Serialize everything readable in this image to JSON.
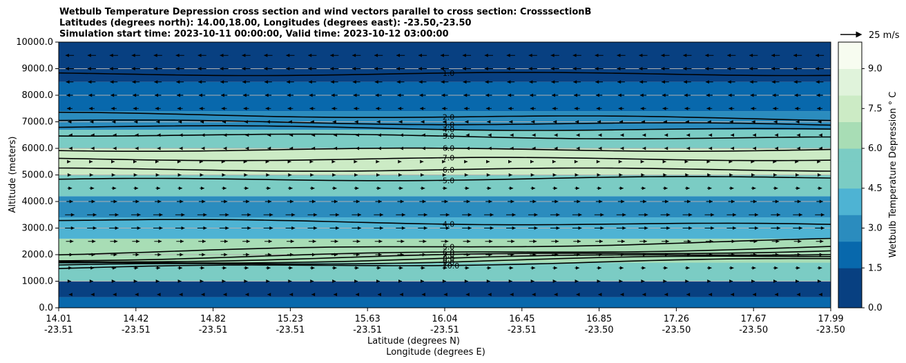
{
  "chart_data": {
    "type": "contour",
    "title_lines": [
      "Wetbulb Temperature Depression cross section and wind vectors parallel to cross section: CrosssectionB",
      "Latitudes (degrees north): 14.00,18.00, Longitudes (degrees east): -23.50,-23.50",
      "Simulation start time: 2023-10-11 00:00:00, Valid time: 2023-10-12 03:00:00"
    ],
    "ylabel": "Altitude (meters)",
    "xlabel_lat": "Latitude (degrees N)",
    "xlabel_lon": "Longitude (degrees E)",
    "ylim": [
      0,
      10000
    ],
    "yticks": [
      "0.0",
      "1000.0",
      "2000.0",
      "3000.0",
      "4000.0",
      "5000.0",
      "6000.0",
      "7000.0",
      "8000.0",
      "9000.0",
      "10000.0"
    ],
    "xticks": [
      {
        "lat": "14.01",
        "lon": "-23.51"
      },
      {
        "lat": "14.42",
        "lon": "-23.51"
      },
      {
        "lat": "14.82",
        "lon": "-23.51"
      },
      {
        "lat": "15.23",
        "lon": "-23.51"
      },
      {
        "lat": "15.63",
        "lon": "-23.51"
      },
      {
        "lat": "16.04",
        "lon": "-23.51"
      },
      {
        "lat": "16.45",
        "lon": "-23.51"
      },
      {
        "lat": "16.85",
        "lon": "-23.50"
      },
      {
        "lat": "17.26",
        "lon": "-23.50"
      },
      {
        "lat": "17.67",
        "lon": "-23.50"
      },
      {
        "lat": "17.99",
        "lon": "-23.50"
      }
    ],
    "colorbar": {
      "label": "Wetbulb Temperature Depression $^\\circ$C",
      "label_display": "Wetbulb Temperature Depression ° C",
      "ticks": [
        "0.0",
        "1.5",
        "3.0",
        "4.5",
        "6.0",
        "7.5",
        "9.0"
      ],
      "range": [
        0,
        10
      ],
      "colors": [
        "#084081",
        "#0868ac",
        "#2b8cbe",
        "#4eb3d3",
        "#7bccc4",
        "#a8ddb5",
        "#ccebc5",
        "#e0f3db",
        "#f7fcf0"
      ]
    },
    "quiver_key": {
      "label": "25 m/s",
      "speed": 25
    },
    "field_bands": [
      {
        "z_bottom": 0,
        "z_top": 400,
        "value": 1.5
      },
      {
        "z_bottom": 400,
        "z_top": 1000,
        "value": 0.2
      },
      {
        "z_bottom": 1000,
        "z_top": 1700,
        "value": 5.0
      },
      {
        "z_bottom": 1700,
        "z_top": 2600,
        "value": 6.5
      },
      {
        "z_bottom": 2600,
        "z_top": 3400,
        "value": 4.0
      },
      {
        "z_bottom": 3400,
        "z_top": 4200,
        "value": 3.2
      },
      {
        "z_bottom": 4200,
        "z_top": 5000,
        "value": 5.0
      },
      {
        "z_bottom": 5000,
        "z_top": 6000,
        "value": 7.0
      },
      {
        "z_bottom": 6000,
        "z_top": 6700,
        "value": 5.0
      },
      {
        "z_bottom": 6700,
        "z_top": 7400,
        "value": 3.0
      },
      {
        "z_bottom": 7400,
        "z_top": 8500,
        "value": 1.5
      },
      {
        "z_bottom": 8500,
        "z_top": 10000,
        "value": 0.8
      }
    ],
    "contour_levels": [
      {
        "level": "10.0",
        "z": 1650,
        "slope": 350
      },
      {
        "level": "9.0",
        "z": 1760,
        "slope": 400
      },
      {
        "level": "8.0",
        "z": 1850,
        "slope": 420
      },
      {
        "level": "7.0",
        "z": 1950,
        "slope": 450
      },
      {
        "level": "6.0",
        "z": 2050,
        "slope": 470
      },
      {
        "level": "5.0",
        "z": 2300,
        "slope": 500
      },
      {
        "level": "4.0",
        "z": 3200,
        "slope": -200
      },
      {
        "level": "5.0",
        "z": 4850,
        "slope": 100
      },
      {
        "level": "6.0",
        "z": 5200,
        "slope": 0
      },
      {
        "level": "7.0",
        "z": 5600,
        "slope": 0
      },
      {
        "level": "6.0",
        "z": 5950,
        "slope": 0
      },
      {
        "level": "5.0",
        "z": 6450,
        "slope": -150
      },
      {
        "level": "4.0",
        "z": 6750,
        "slope": -150
      },
      {
        "level": "3.0",
        "z": 6950,
        "slope": -150
      },
      {
        "level": "2.0",
        "z": 7200,
        "slope": -200
      },
      {
        "level": "1.0",
        "z": 8800,
        "slope": 0
      }
    ],
    "wind_rows": [
      {
        "z": 9500,
        "u": -8
      },
      {
        "z": 9000,
        "u": -8
      },
      {
        "z": 8500,
        "u": -7
      },
      {
        "z": 8000,
        "u": -6
      },
      {
        "z": 7500,
        "u": -5
      },
      {
        "z": 7000,
        "u": -3
      },
      {
        "z": 6500,
        "u": -1
      },
      {
        "z": 6000,
        "u": -1
      },
      {
        "z": 5500,
        "u": 1
      },
      {
        "z": 5000,
        "u": 2
      },
      {
        "z": 4500,
        "u": 4
      },
      {
        "z": 4000,
        "u": 6
      },
      {
        "z": 3500,
        "u": 9
      },
      {
        "z": 3000,
        "u": 9
      },
      {
        "z": 2500,
        "u": 7
      },
      {
        "z": 2000,
        "u": 6
      },
      {
        "z": 1500,
        "u": 4
      },
      {
        "z": 1000,
        "u": 2
      },
      {
        "z": 500,
        "u": -1
      }
    ]
  }
}
